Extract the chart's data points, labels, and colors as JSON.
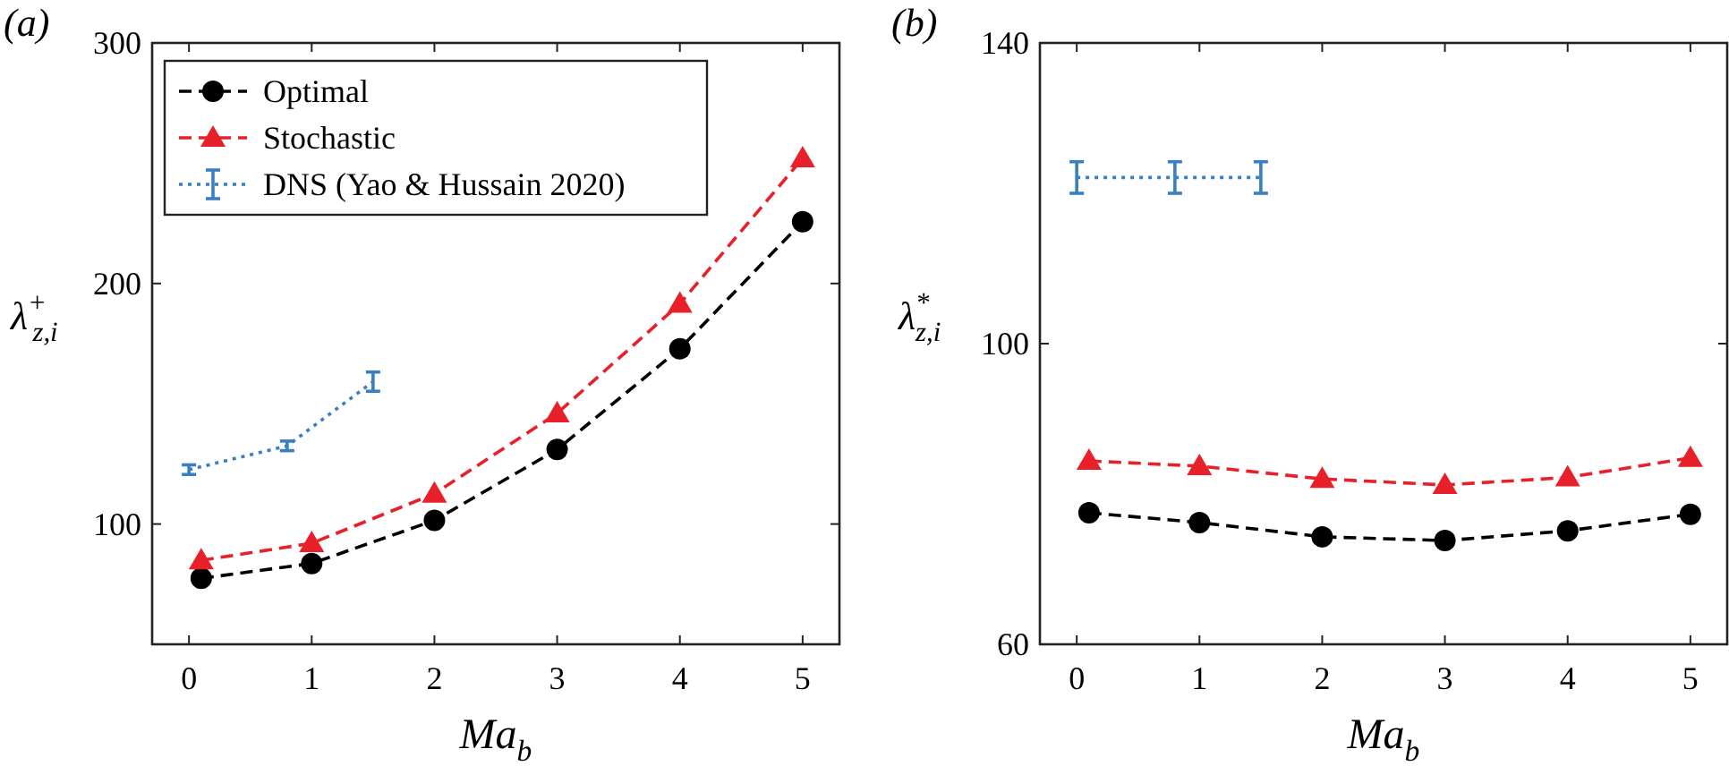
{
  "chart_data": [
    {
      "type": "line",
      "title": "(a)",
      "xlabel": "Ma$_{b}$",
      "ylabel": "λ$^{+}$$_{z,i}$",
      "xlim": [
        -0.3,
        5.3
      ],
      "xticks": [
        0,
        1,
        2,
        3,
        4,
        5
      ],
      "ylim": [
        50,
        300
      ],
      "yticks": [
        100,
        200,
        300
      ],
      "grid": false,
      "legend": "top left",
      "series": [
        {
          "name": "Optimal",
          "color": "#000000",
          "marker": "circle",
          "line_style": "dashed",
          "x": [
            0.1,
            1,
            2,
            3,
            4,
            5
          ],
          "values": [
            77.4,
            83.6,
            101.5,
            131,
            172.9,
            225.7
          ]
        },
        {
          "name": "Stochastic",
          "color": "#e8202a",
          "marker": "triangle",
          "line_style": "dashed",
          "x": [
            0.1,
            1,
            2,
            3,
            4,
            5
          ],
          "values": [
            84.9,
            92,
            112.6,
            146,
            191.6,
            252
          ]
        },
        {
          "name": "DNS (Yao & Hussain 2020)",
          "color": "#3a7fc1",
          "marker": "none",
          "line_style": "dotted",
          "x": [
            0,
            0.8,
            1.5
          ],
          "values": [
            122.6,
            132.5,
            159.2
          ],
          "errors": [
            2,
            2,
            4
          ]
        }
      ]
    },
    {
      "type": "line",
      "title": "(b)",
      "xlabel": "Ma$_{b}$",
      "ylabel": "λ$^{*}$$_{z,i}$",
      "xlim": [
        -0.3,
        5.3
      ],
      "xticks": [
        0,
        1,
        2,
        3,
        4,
        5
      ],
      "ylim": [
        60,
        140
      ],
      "yticks": [
        60,
        100,
        140
      ],
      "grid": false,
      "legend": false,
      "series": [
        {
          "color": "#000000",
          "marker": "circle",
          "line_style": "dashed",
          "x": [
            0.1,
            1,
            2,
            3,
            4,
            5
          ],
          "values": [
            77.5,
            76.2,
            74.3,
            73.8,
            75.1,
            77.3
          ]
        },
        {
          "color": "#e8202a",
          "marker": "triangle",
          "line_style": "dashed",
          "x": [
            0.1,
            1,
            2,
            3,
            4,
            5
          ],
          "values": [
            84.4,
            83.7,
            82.0,
            81.2,
            82.2,
            84.8
          ]
        },
        {
          "color": "#3a7fc1",
          "marker": "none",
          "line_style": "dotted",
          "x": [
            0,
            0.8,
            1.5
          ],
          "values": [
            122.1,
            122.1,
            122.1
          ],
          "errors": [
            2.1,
            2.1,
            2.1
          ]
        }
      ]
    }
  ]
}
